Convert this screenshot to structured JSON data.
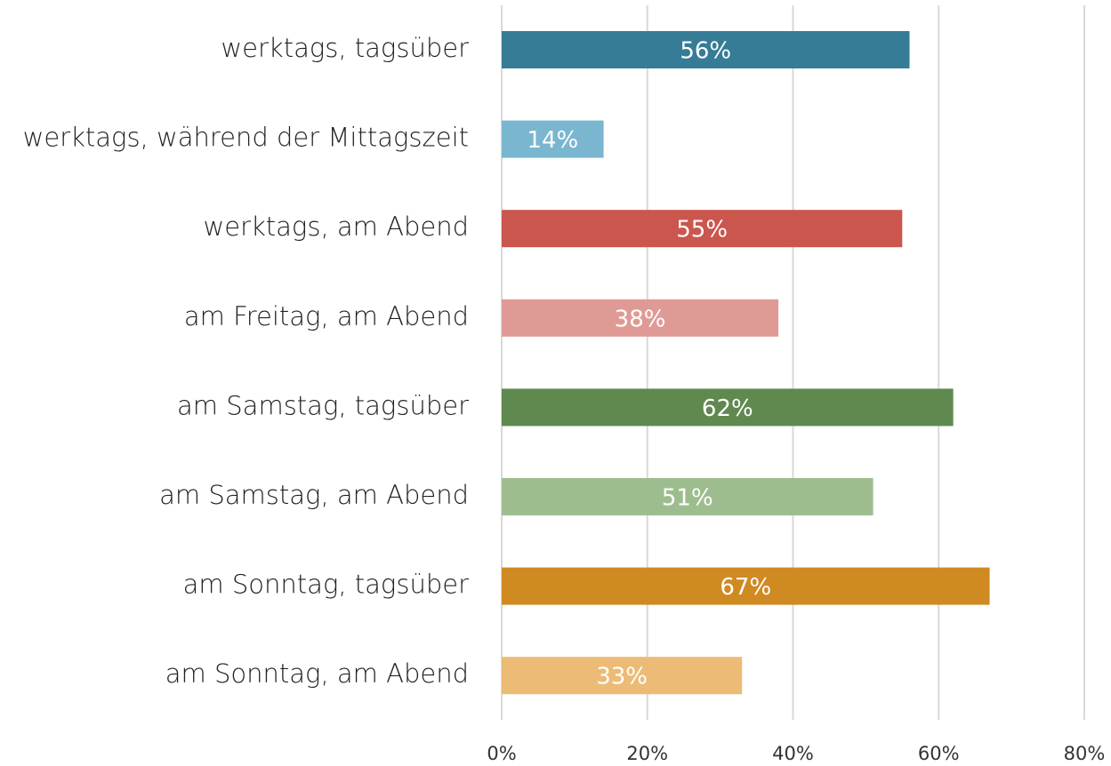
{
  "chart_data": {
    "type": "hbar",
    "categories": [
      "werktags, tagsüber",
      "werktags, während der Mittagszeit",
      "werktags, am Abend",
      "am Freitag, am Abend",
      "am Samstag, tagsüber",
      "am Samstag, am Abend",
      "am Sonntag, tagsüber",
      "am Sonntag, am Abend"
    ],
    "values": [
      56,
      14,
      55,
      38,
      62,
      51,
      67,
      33
    ],
    "value_labels": [
      "56%",
      "14%",
      "55%",
      "38%",
      "62%",
      "51%",
      "67%",
      "33%"
    ],
    "colors": [
      "#367c97",
      "#7ab6cf",
      "#cb564e",
      "#e09a95",
      "#5f894e",
      "#9ebd8f",
      "#d08a22",
      "#ecbb76"
    ],
    "xlim": [
      0,
      80
    ],
    "xticks": [
      {
        "value": 0,
        "label": "0%"
      },
      {
        "value": 20,
        "label": "20%"
      },
      {
        "value": 40,
        "label": "40%"
      },
      {
        "value": 60,
        "label": "60%"
      },
      {
        "value": 80,
        "label": "80%"
      }
    ],
    "grid": true
  }
}
